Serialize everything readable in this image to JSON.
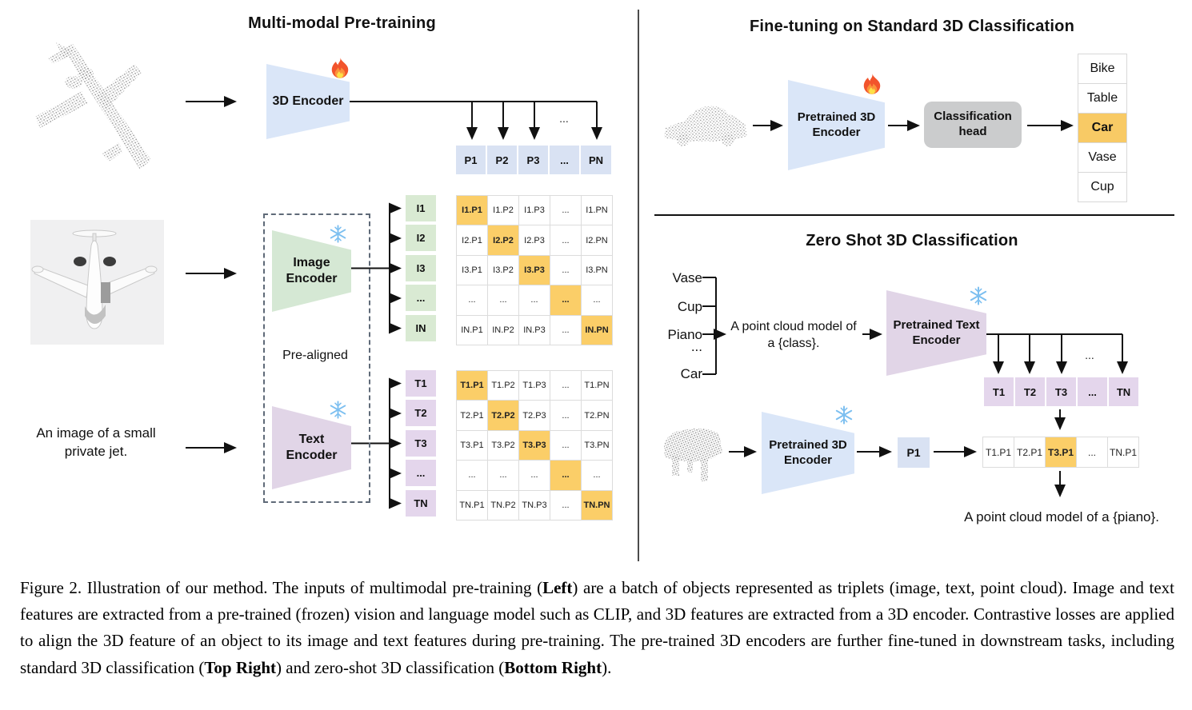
{
  "left": {
    "title": "Multi-modal Pre-training",
    "encoder3d": "3D Encoder",
    "image_encoder": "Image\nEncoder",
    "text_encoder": "Text\nEncoder",
    "pre_aligned": "Pre-aligned",
    "prompt": "An image of a small\nprivate jet.",
    "dots": "...",
    "p_row": [
      "P1",
      "P2",
      "P3",
      "...",
      "PN"
    ],
    "i_col": [
      "I1",
      "I2",
      "I3",
      "...",
      "IN"
    ],
    "t_col": [
      "T1",
      "T2",
      "T3",
      "...",
      "TN"
    ],
    "i_matrix": [
      [
        "I1.P1",
        "I1.P2",
        "I1.P3",
        "...",
        "I1.PN"
      ],
      [
        "I2.P1",
        "I2.P2",
        "I2.P3",
        "...",
        "I2.PN"
      ],
      [
        "I3.P1",
        "I3.P2",
        "I3.P3",
        "...",
        "I3.PN"
      ],
      [
        "...",
        "...",
        "...",
        "...",
        "..."
      ],
      [
        "IN.P1",
        "IN.P2",
        "IN.P3",
        "...",
        "IN.PN"
      ]
    ],
    "t_matrix": [
      [
        "T1.P1",
        "T1.P2",
        "T1.P3",
        "...",
        "T1.PN"
      ],
      [
        "T2.P1",
        "T2.P2",
        "T2.P3",
        "...",
        "T2.PN"
      ],
      [
        "T3.P1",
        "T3.P2",
        "T3.P3",
        "...",
        "T3.PN"
      ],
      [
        "...",
        "...",
        "...",
        "...",
        "..."
      ],
      [
        "TN.P1",
        "TN.P2",
        "TN.P3",
        "...",
        "TN.PN"
      ]
    ]
  },
  "top_right": {
    "title": "Fine-tuning on Standard 3D Classification",
    "encoder": "Pretrained 3D\nEncoder",
    "head": "Classification\nhead",
    "classes": [
      "Bike",
      "Table",
      "Car",
      "Vase",
      "Cup"
    ],
    "highlighted_class": "Car"
  },
  "bottom_right": {
    "title": "Zero Shot 3D Classification",
    "class_list": [
      "Vase",
      "Cup",
      "Piano",
      "...",
      "Car"
    ],
    "prompt": "A point cloud model of\na {class}.",
    "text_encoder": "Pretrained Text\nEncoder",
    "encoder3d": "Pretrained 3D\nEncoder",
    "dots": "...",
    "t_row": [
      "T1",
      "T2",
      "T3",
      "...",
      "TN"
    ],
    "p_cell": "P1",
    "sim_row": [
      "T1.P1",
      "T2.P1",
      "T3.P1",
      "...",
      "TN.P1"
    ],
    "highlighted_sim": "T3.P1",
    "result": "A point cloud model of a {piano}."
  },
  "caption": {
    "s1": "Figure 2. Illustration of our method. The inputs of multimodal pre-training (",
    "b1": "Left",
    "s2": ") are a batch of objects represented as triplets (image, text, point cloud). Image and text features are extracted from a pre-trained (frozen) vision and language model such as CLIP, and 3D features are extracted from a 3D encoder. Contrastive losses are applied to align the 3D feature of an object to its image and text features during pre-training. The pre-trained 3D encoders are further fine-tuned in downstream tasks, including standard 3D classification (",
    "b2": "Top Right",
    "s3": ") and zero-shot 3D classification (",
    "b3": "Bottom Right",
    "s4": ")."
  },
  "colors": {
    "highlight_orange": "#FBCE68",
    "point_feature_blue": "#D9E2F3",
    "image_feature_green": "#D9EAD3",
    "text_feature_purple": "#E4D6EC",
    "encoder_blue": "#DAE6F8",
    "encoder_green": "#D5E8D4",
    "encoder_purple": "#E1D5E7",
    "classification_head_gray": "#CBCCCD"
  }
}
